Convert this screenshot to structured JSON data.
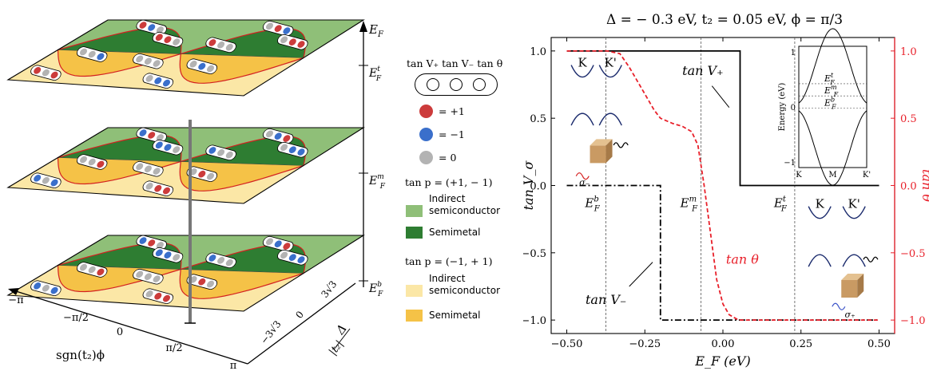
{
  "colors": {
    "red_dot": "#cc3b3b",
    "blue_dot": "#3a6fcb",
    "gray_dot": "#b3b3b3",
    "indirect_semiconductor_plus": "#8fbf78",
    "semimetal_plus": "#2e7d32",
    "indirect_semiconductor_minus": "#fbe7a6",
    "semimetal_minus": "#f5c247",
    "black_series": "#000000",
    "red_series": "#e8202a",
    "band_curve": "#1a2a6c"
  },
  "left": {
    "z_axis_label": "E",
    "z_axis_sub": "F",
    "levels": [
      {
        "label": "E",
        "sub": "F",
        "sup": "t"
      },
      {
        "label": "E",
        "sub": "F",
        "sup": "m"
      },
      {
        "label": "E",
        "sub": "F",
        "sup": "b"
      }
    ],
    "x_ticks": [
      "−π",
      "−π/2",
      "0",
      "π/2",
      "π"
    ],
    "x_label": "sgn(t₂)ϕ",
    "y_ticks": [
      "−3√3",
      "0",
      "3√3"
    ],
    "y_label_num": "Δ",
    "y_label_den": "|t₂|"
  },
  "legend": {
    "header": "tan V₊ tan V₋ tan θ",
    "red_label": "= +1",
    "blue_label": "= −1",
    "gray_label": "= 0",
    "plus_group_title": "tan p = (+1, − 1)",
    "minus_group_title": "tan p = (−1, + 1)",
    "indirect_line1": "Indirect",
    "indirect_line2": "semiconductor",
    "semimetal": "Semimetal"
  },
  "chart_data": {
    "type": "line",
    "title": "Δ = − 0.3 eV, t₂ = 0.05 eV, ϕ = π/3",
    "xlabel": "E_F (eV)",
    "ylabel_left": "tan V_σ",
    "ylabel_right": "tan θ",
    "xlim": [
      -0.55,
      0.55
    ],
    "ylim": [
      -1.1,
      1.1
    ],
    "x_ticks": [
      -0.5,
      -0.25,
      0.0,
      0.25,
      0.5
    ],
    "x_tick_labels": [
      "−0.50",
      "−0.25",
      "0.00",
      "0.25",
      "0.50"
    ],
    "y_ticks": [
      -1.0,
      -0.5,
      0.0,
      0.5,
      1.0
    ],
    "y_tick_labels": [
      "−1.0",
      "−0.5",
      "0.0",
      "0.5",
      "1.0"
    ],
    "y_right_tick_labels": [
      "−1.0",
      "−0.5",
      "0.0",
      "0.5",
      "1.0"
    ],
    "vlines": [
      -0.375,
      -0.07,
      0.23
    ],
    "vline_labels": [
      {
        "label": "E",
        "sub": "F",
        "sup": "b"
      },
      {
        "label": "E",
        "sub": "F",
        "sup": "m"
      },
      {
        "label": "E",
        "sub": "F",
        "sup": "t"
      }
    ],
    "series": [
      {
        "name": "tan V₊",
        "style": "solid",
        "color": "#000000",
        "x": [
          -0.5,
          0.055,
          0.055,
          0.5
        ],
        "y": [
          1.0,
          1.0,
          0.0,
          0.0
        ]
      },
      {
        "name": "tan V₋",
        "style": "dashdot",
        "color": "#000000",
        "x": [
          -0.5,
          -0.2,
          -0.2,
          0.5
        ],
        "y": [
          0.0,
          0.0,
          -1.0,
          -1.0
        ]
      },
      {
        "name": "tan θ",
        "style": "dashed",
        "color": "#e8202a",
        "x": [
          -0.5,
          -0.37,
          -0.33,
          -0.3,
          -0.26,
          -0.22,
          -0.2,
          -0.16,
          -0.13,
          -0.1,
          -0.08,
          -0.06,
          -0.04,
          -0.02,
          0.0,
          0.02,
          0.05,
          0.5
        ],
        "y": [
          1.0,
          1.0,
          0.98,
          0.88,
          0.72,
          0.56,
          0.5,
          0.46,
          0.44,
          0.4,
          0.3,
          0.0,
          -0.35,
          -0.7,
          -0.88,
          -0.96,
          -1.0,
          -1.0
        ]
      }
    ],
    "annotations": [
      "K",
      "K'",
      "σ₋",
      "σ₊"
    ],
    "inset": {
      "ylabel": "Energy (eV)",
      "x_ticks": [
        "K",
        "M",
        "K'"
      ],
      "y_ticks": [
        "−1",
        "0",
        "1"
      ],
      "ylim": [
        -1.1,
        1.1
      ],
      "levels": [
        {
          "label": "E",
          "sub": "F",
          "sup": "t",
          "value": 0.42
        },
        {
          "label": "E",
          "sub": "F",
          "sup": "m",
          "value": 0.2
        },
        {
          "label": "E",
          "sub": "F",
          "sup": "b",
          "value": -0.02
        }
      ]
    }
  }
}
